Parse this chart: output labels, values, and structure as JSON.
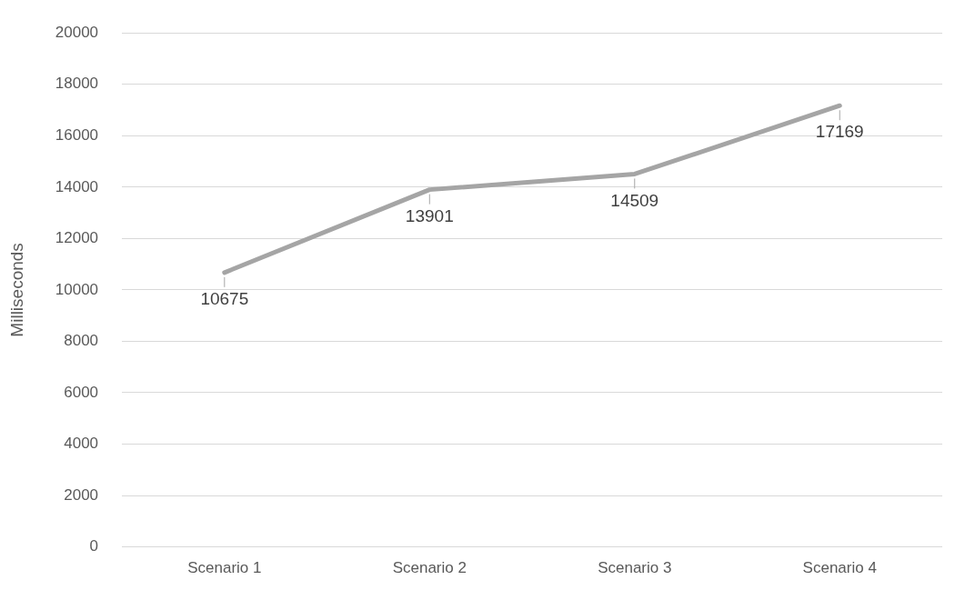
{
  "chart_data": {
    "type": "line",
    "ylabel": "Milliseconds",
    "categories": [
      "Scenario 1",
      "Scenario 2",
      "Scenario 3",
      "Scenario 4"
    ],
    "series": [
      {
        "color": "#a5a5a5",
        "values": [
          10675,
          13901,
          14509,
          17169
        ]
      }
    ],
    "ylim": [
      0,
      20000
    ],
    "yticks": [
      0,
      2000,
      4000,
      6000,
      8000,
      10000,
      12000,
      14000,
      16000,
      18000,
      20000
    ],
    "grid": "y",
    "legend": false,
    "marker": "none",
    "line_style": "solid",
    "data_labels": true
  }
}
